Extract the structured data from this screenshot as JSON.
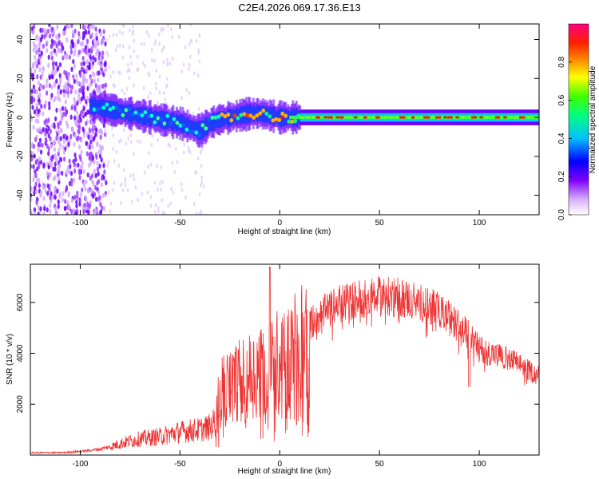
{
  "title": "C2E4.2026.069.17.36.E13",
  "chart_data": [
    {
      "type": "heatmap",
      "xlabel": "Height of straight line (km)",
      "ylabel": "Frequency (Hz)",
      "xlim": [
        -125,
        130
      ],
      "ylim": [
        -50,
        48
      ],
      "xticks": [
        -100,
        -50,
        0,
        50,
        100
      ],
      "yticks": [
        -40,
        -20,
        0,
        20,
        40
      ],
      "colorbar": {
        "label": "Normalized spectral amplitude",
        "range": [
          0,
          1
        ],
        "ticks": [
          "0.0",
          "0.2",
          "0.4",
          "0.6",
          "0.8"
        ],
        "colors": [
          "#ffffff",
          "#c080ff",
          "#8000ff",
          "#0000ff",
          "#00ffff",
          "#00ff00",
          "#ffff00",
          "#ff8000",
          "#ff0000",
          "#ff0080"
        ]
      },
      "ridge": {
        "x": [
          -105,
          -95,
          -90,
          -85,
          -80,
          -75,
          -70,
          -65,
          -60,
          -55,
          -50,
          -45,
          -40,
          -35,
          -30,
          -25,
          -20,
          -15,
          -10,
          -5,
          0,
          5,
          10,
          20,
          40,
          60,
          80,
          100,
          130
        ],
        "y": [
          6,
          6,
          5,
          4,
          3,
          2,
          1,
          0,
          -1,
          -2,
          -3,
          -5,
          -7,
          -3,
          -1,
          0,
          1,
          2,
          2,
          1,
          0,
          0,
          0,
          0,
          0,
          0,
          0,
          0,
          0
        ]
      }
    },
    {
      "type": "line",
      "xlabel": "Height of straight line (km)",
      "ylabel": "SNR (10 * v/v)",
      "xlim": [
        -125,
        130
      ],
      "ylim": [
        0,
        7500
      ],
      "xticks": [
        -100,
        -50,
        0,
        50,
        100
      ],
      "yticks": [
        2000,
        4000,
        6000
      ],
      "color": "#ee3333",
      "envelope": {
        "x": [
          -125,
          -110,
          -100,
          -90,
          -85,
          -80,
          -70,
          -60,
          -50,
          -40,
          -35,
          -32,
          -30,
          -25,
          -20,
          -15,
          -10,
          -5,
          0,
          5,
          10,
          15,
          20,
          25,
          30,
          40,
          50,
          60,
          70,
          80,
          90,
          95,
          100,
          110,
          120,
          125,
          130
        ],
        "y": [
          100,
          100,
          150,
          250,
          350,
          500,
          700,
          800,
          1000,
          1100,
          1200,
          1500,
          2800,
          3000,
          3300,
          3500,
          3700,
          3900,
          4200,
          4500,
          4900,
          5300,
          5600,
          5900,
          6100,
          6300,
          6400,
          6350,
          6200,
          5800,
          5200,
          4800,
          4300,
          4000,
          3700,
          3400,
          3200
        ]
      }
    }
  ]
}
